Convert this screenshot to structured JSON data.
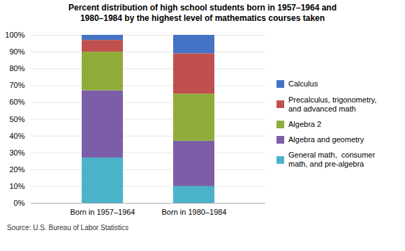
{
  "chart_data": {
    "type": "bar",
    "stacked": true,
    "title": "Percent distribution of high school students born in 1957–1964 and\n1980–1984 by the highest level of mathematics courses taken",
    "categories": [
      "Born in 1957–1964",
      "Born in 1980–1984"
    ],
    "series": [
      {
        "name": "General math,  consumer\nmath, and pre-algebra",
        "color": "#4ab3c8",
        "values": [
          27,
          10
        ]
      },
      {
        "name": "Algebra and geometry",
        "color": "#7b5ea7",
        "values": [
          40,
          27
        ]
      },
      {
        "name": "Algebra 2",
        "color": "#8fac3a",
        "values": [
          23,
          28
        ]
      },
      {
        "name": "Precalculus, trigonometry,\nand advanced math",
        "color": "#c0504d",
        "values": [
          7,
          24
        ]
      },
      {
        "name": "Calculus",
        "color": "#4472c4",
        "values": [
          3,
          11
        ]
      }
    ],
    "ylim": [
      0,
      100
    ],
    "yticks": [
      {
        "value": 0,
        "label": "0%"
      },
      {
        "value": 10,
        "label": "10%"
      },
      {
        "value": 20,
        "label": "20%"
      },
      {
        "value": 30,
        "label": "30%"
      },
      {
        "value": 40,
        "label": "40%"
      },
      {
        "value": 50,
        "label": "50%"
      },
      {
        "value": 60,
        "label": "60%"
      },
      {
        "value": 70,
        "label": "70%"
      },
      {
        "value": 80,
        "label": "80%"
      },
      {
        "value": 90,
        "label": "90%"
      },
      {
        "value": 100,
        "label": "100%"
      }
    ],
    "grid": true,
    "legend": "right",
    "source": "Source: U.S. Bureau of Labor Statistics"
  }
}
